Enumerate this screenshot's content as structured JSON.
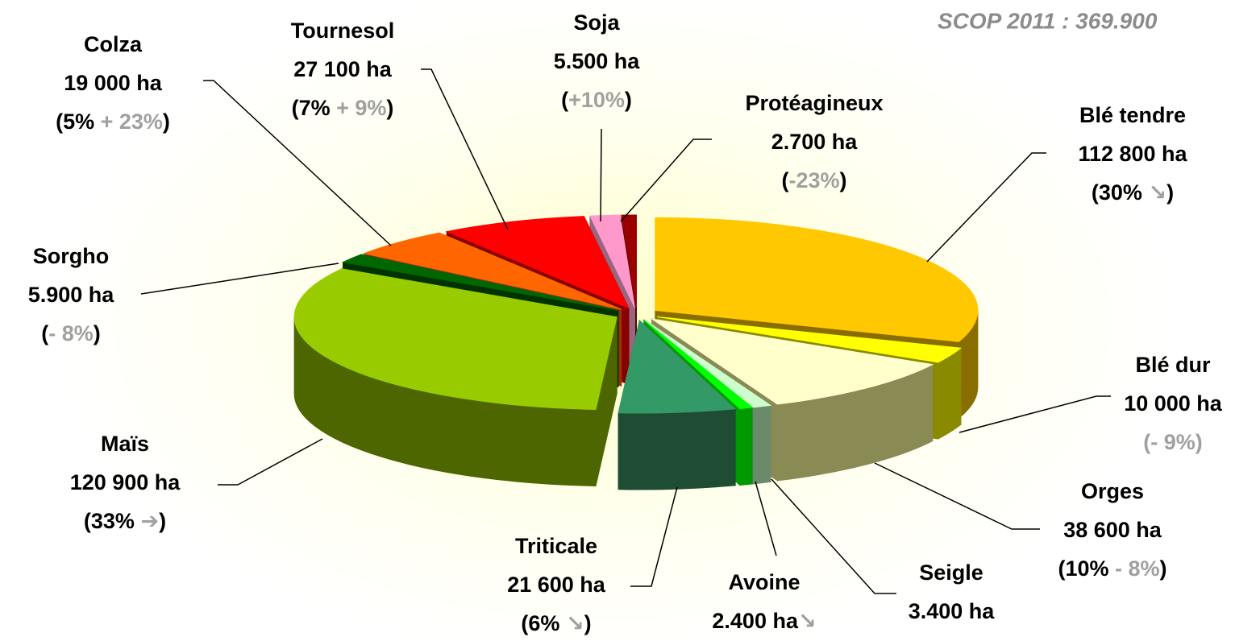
{
  "chart_data": {
    "type": "pie3d",
    "title": "SCOP 2011 : 369.900",
    "categories": [
      "Blé tendre",
      "Blé dur",
      "Orges",
      "Seigle",
      "Avoine",
      "Triticale",
      "Maïs",
      "Sorgho",
      "Colza",
      "Tournesol",
      "Soja",
      "Protéagineux"
    ],
    "values": [
      112800,
      10000,
      38600,
      3400,
      2400,
      21600,
      120900,
      5900,
      19000,
      27100,
      5500,
      2700
    ],
    "value_labels": [
      "112 800 ha",
      "10 000 ha",
      "38 600 ha",
      "3.400 ha",
      "2.400 ha",
      "21 600 ha",
      "120 900 ha",
      "5.900 ha",
      "19 000 ha",
      "27 100 ha",
      "5.500 ha",
      "2.700 ha"
    ],
    "details": [
      [
        {
          "text": "(30% ",
          "color": "#000000"
        },
        {
          "text": "↘",
          "color": "#a0a0a0"
        },
        {
          "text": ")",
          "color": "#000000"
        }
      ],
      [
        {
          "text": "(- 9%)",
          "color": "#a0a0a0"
        }
      ],
      [
        {
          "text": "(10% ",
          "color": "#000000"
        },
        {
          "text": "- 8%",
          "color": "#a0a0a0"
        },
        {
          "text": ")",
          "color": "#000000"
        }
      ],
      null,
      [
        {
          "text": "↘",
          "color": "#a0a0a0"
        }
      ],
      [
        {
          "text": "(6% ",
          "color": "#000000"
        },
        {
          "text": "↘",
          "color": "#a0a0a0"
        },
        {
          "text": ")",
          "color": "#000000"
        }
      ],
      [
        {
          "text": "(33% ",
          "color": "#000000"
        },
        {
          "text": "➔",
          "color": "#a0a0a0"
        },
        {
          "text": ")",
          "color": "#000000"
        }
      ],
      [
        {
          "text": "(",
          "color": "#000000"
        },
        {
          "text": "- 8%",
          "color": "#a0a0a0"
        },
        {
          "text": ")",
          "color": "#000000"
        }
      ],
      [
        {
          "text": "(5% ",
          "color": "#000000"
        },
        {
          "text": "+ 23%",
          "color": "#a0a0a0"
        },
        {
          "text": ")",
          "color": "#000000"
        }
      ],
      [
        {
          "text": "(7% ",
          "color": "#000000"
        },
        {
          "text": "+ 9%",
          "color": "#a0a0a0"
        },
        {
          "text": ")",
          "color": "#000000"
        }
      ],
      [
        {
          "text": "(",
          "color": "#000000"
        },
        {
          "text": "+10%",
          "color": "#a0a0a0"
        },
        {
          "text": ")",
          "color": "#000000"
        }
      ],
      [
        {
          "text": "(",
          "color": "#000000"
        },
        {
          "text": "-23%",
          "color": "#a0a0a0"
        },
        {
          "text": ")",
          "color": "#000000"
        }
      ]
    ],
    "colors": [
      "#ffc800",
      "#ffff00",
      "#ffffcc",
      "#ccffcc",
      "#00ff00",
      "#339966",
      "#99cc00",
      "#006600",
      "#ff6600",
      "#ff0000",
      "#ff99cc",
      "#990000"
    ],
    "side_colors": [
      "#8a6d00",
      "#8a8a00",
      "#8a8a55",
      "#6a8a6a",
      "#009900",
      "#1e4d33",
      "#4d6600",
      "#003300",
      "#993300",
      "#880000",
      "#996680",
      "#550000"
    ]
  }
}
